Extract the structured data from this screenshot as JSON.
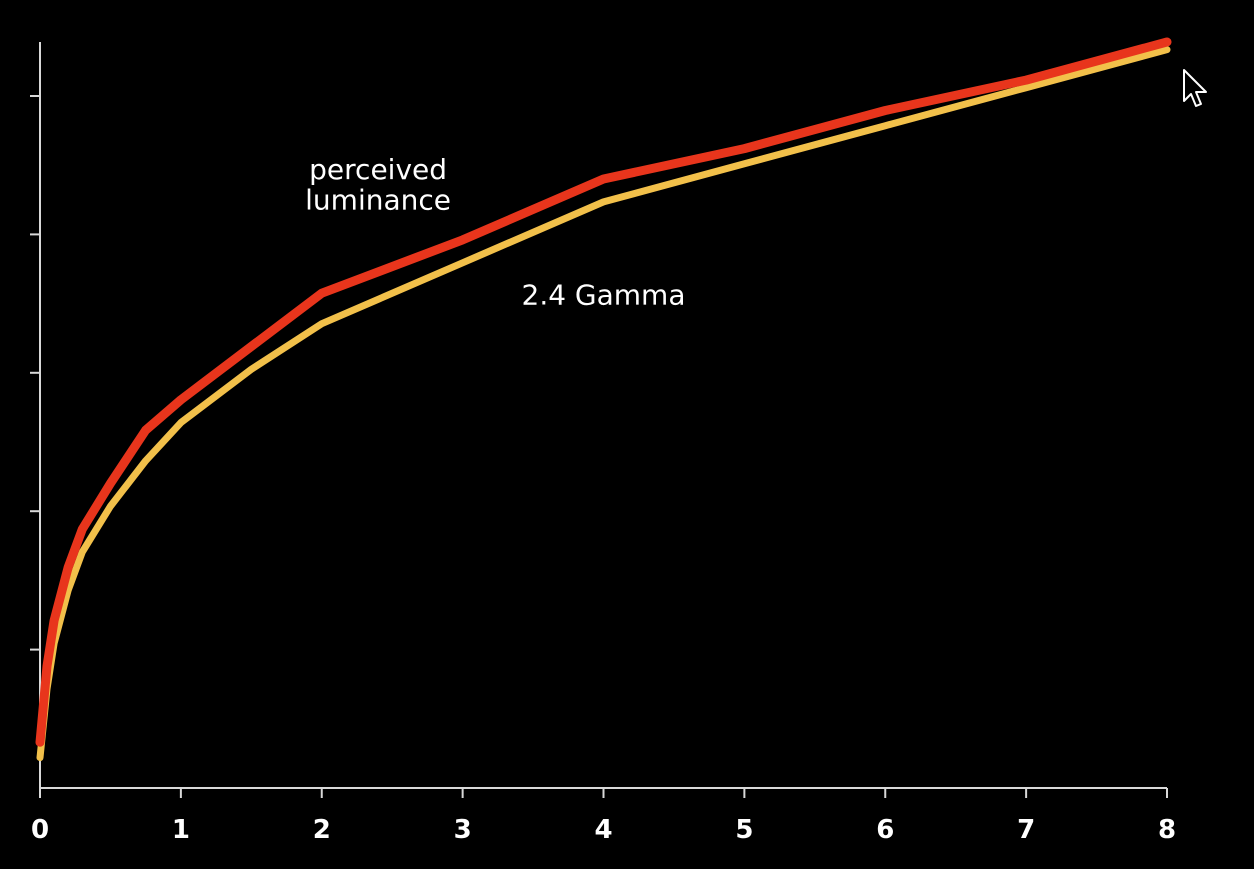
{
  "chart_data": {
    "type": "line",
    "x_ticks": [
      "0",
      "1",
      "2",
      "3",
      "4",
      "5",
      "6",
      "7",
      "8"
    ],
    "xlim": [
      0,
      8
    ],
    "ylim": [
      0,
      1
    ],
    "y_tick_values": [
      0.2,
      0.4,
      0.6,
      0.8,
      1.0
    ],
    "grid": false,
    "series": [
      {
        "color": "#f2c04a",
        "x": [
          0,
          0.05,
          0.1,
          0.2,
          0.3,
          0.5,
          0.75,
          1,
          1.5,
          2,
          3,
          4,
          5,
          6,
          7,
          8
        ],
        "y": [
          0.04,
          0.13,
          0.19,
          0.26,
          0.31,
          0.37,
          0.43,
          0.48,
          0.55,
          0.61,
          0.69,
          0.77,
          0.82,
          0.87,
          0.92,
          0.97
        ]
      },
      {
        "color": "#e8351c",
        "x": [
          0,
          0.05,
          0.1,
          0.2,
          0.3,
          0.5,
          0.75,
          1,
          1.5,
          2,
          3,
          4,
          5,
          6,
          7,
          8
        ],
        "y": [
          0.06,
          0.16,
          0.22,
          0.29,
          0.34,
          0.4,
          0.47,
          0.51,
          0.58,
          0.65,
          0.72,
          0.8,
          0.84,
          0.89,
          0.93,
          0.98
        ]
      }
    ],
    "annotations": [
      {
        "text": "perceived",
        "anchor_x": 2.4,
        "anchor_y": 0.8
      },
      {
        "text": "luminance",
        "anchor_x": 2.4,
        "anchor_y": 0.76
      },
      {
        "text": "2.4 Gamma",
        "anchor_x": 4.0,
        "anchor_y": 0.635
      }
    ]
  }
}
